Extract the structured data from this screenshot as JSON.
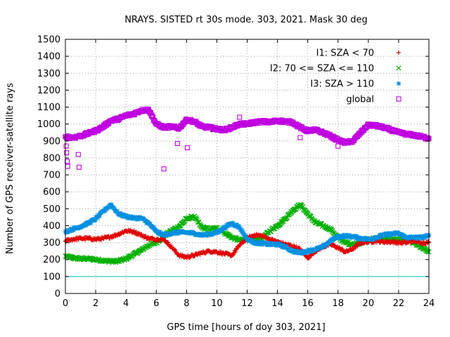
{
  "chart_data": {
    "type": "scatter",
    "title": "NRAYS. SISTED rt 30s mode. 303, 2021. Mask 30 deg",
    "xlabel": "GPS time [hours of doy 303, 2021]",
    "ylabel": "Number of GPS receiver-satellite rays",
    "xlim": [
      0,
      24
    ],
    "ylim": [
      0,
      1500
    ],
    "xticks": [
      "0",
      "2",
      "4",
      "6",
      "8",
      "10",
      "12",
      "14",
      "16",
      "18",
      "20",
      "22",
      "24"
    ],
    "yticks": [
      "0",
      "100",
      "200",
      "300",
      "400",
      "500",
      "600",
      "700",
      "800",
      "900",
      "1000",
      "1100",
      "1200",
      "1300",
      "1400",
      "1500"
    ],
    "grid": true,
    "legend_position": "top-right",
    "reference_line": {
      "y": 100,
      "color": "#00c8c8"
    },
    "series": [
      {
        "name": "I1: SZA < 70",
        "color": "#e00000",
        "marker": "plus",
        "x": [
          0,
          0.5,
          1,
          1.5,
          2,
          2.5,
          3,
          3.5,
          4,
          4.5,
          5,
          5.5,
          6,
          6.5,
          7,
          7.5,
          8,
          8.5,
          9,
          9.5,
          10,
          10.5,
          11,
          11.5,
          12,
          12.5,
          13,
          13.5,
          14,
          14.5,
          15,
          15.5,
          16,
          16.5,
          17,
          17.5,
          18,
          18.5,
          19,
          19.5,
          20,
          20.5,
          21,
          21.5,
          22,
          22.5,
          23,
          23.5,
          24
        ],
        "values": [
          310,
          320,
          325,
          325,
          320,
          325,
          335,
          350,
          370,
          365,
          345,
          325,
          320,
          320,
          275,
          225,
          215,
          225,
          240,
          250,
          245,
          235,
          225,
          285,
          325,
          345,
          340,
          320,
          305,
          290,
          280,
          260,
          210,
          250,
          275,
          290,
          270,
          245,
          265,
          300,
          305,
          310,
          305,
          305,
          300,
          300,
          310,
          300,
          300
        ]
      },
      {
        "name": "I2: 70 <= SZA <= 110",
        "color": "#00b000",
        "marker": "cross",
        "x": [
          0,
          0.5,
          1,
          1.5,
          2,
          2.5,
          3,
          3.5,
          4,
          4.5,
          5,
          5.5,
          6,
          6.5,
          7,
          7.5,
          8,
          8.5,
          9,
          9.5,
          10,
          10.5,
          11,
          11.5,
          12,
          12.5,
          13,
          13.5,
          14,
          14.5,
          15,
          15.5,
          16,
          16.5,
          17,
          17.5,
          18,
          18.5,
          19,
          19.5,
          20,
          20.5,
          21,
          21.5,
          22,
          22.5,
          23,
          23.5,
          24
        ],
        "values": [
          220,
          210,
          205,
          205,
          200,
          195,
          190,
          190,
          205,
          230,
          255,
          285,
          300,
          340,
          370,
          395,
          440,
          455,
          390,
          380,
          385,
          360,
          330,
          315,
          320,
          310,
          325,
          370,
          400,
          440,
          490,
          525,
          470,
          420,
          400,
          380,
          330,
          300,
          290,
          300,
          320,
          325,
          330,
          320,
          320,
          320,
          300,
          270,
          245
        ]
      },
      {
        "name": "I3: SZA > 110",
        "color": "#0090e0",
        "marker": "star",
        "x": [
          0,
          0.5,
          1,
          1.5,
          2,
          2.5,
          3,
          3.5,
          4,
          4.5,
          5,
          5.5,
          6,
          6.5,
          7,
          7.5,
          8,
          8.5,
          9,
          9.5,
          10,
          10.5,
          11,
          11.5,
          12,
          12.5,
          13,
          13.5,
          14,
          14.5,
          15,
          15.5,
          16,
          16.5,
          17,
          17.5,
          18,
          18.5,
          19,
          19.5,
          20,
          20.5,
          21,
          21.5,
          22,
          22.5,
          23,
          23.5,
          24
        ],
        "values": [
          365,
          380,
          395,
          415,
          440,
          485,
          525,
          470,
          455,
          445,
          445,
          415,
          365,
          345,
          355,
          360,
          360,
          355,
          345,
          350,
          360,
          390,
          415,
          390,
          320,
          300,
          295,
          290,
          290,
          275,
          250,
          240,
          250,
          260,
          275,
          310,
          335,
          340,
          335,
          325,
          320,
          330,
          345,
          350,
          355,
          330,
          330,
          330,
          340
        ]
      },
      {
        "name": "global",
        "color": "#c000e0",
        "marker": "square",
        "x": [
          0,
          0.5,
          1,
          1.5,
          2,
          2.5,
          3,
          3.5,
          4,
          4.5,
          5,
          5.5,
          6,
          6.5,
          7,
          7.5,
          8,
          8.5,
          9,
          9.5,
          10,
          10.5,
          11,
          11.5,
          12,
          12.5,
          13,
          13.5,
          14,
          14.5,
          15,
          15.5,
          16,
          16.5,
          17,
          17.5,
          18,
          18.5,
          19,
          19.5,
          20,
          20.5,
          21,
          21.5,
          22,
          22.5,
          23,
          23.5,
          24
        ],
        "values": [
          925,
          920,
          930,
          945,
          960,
          985,
          1020,
          1030,
          1050,
          1060,
          1080,
          1085,
          1000,
          980,
          985,
          975,
          1025,
          1015,
          985,
          980,
          970,
          965,
          980,
          1000,
          1000,
          1010,
          1015,
          1010,
          1020,
          1015,
          1010,
          980,
          960,
          965,
          950,
          930,
          905,
          890,
          900,
          950,
          995,
          990,
          980,
          965,
          950,
          940,
          935,
          925,
          915
        ]
      }
    ],
    "global_outliers": {
      "x": [
        0.05,
        0.08,
        0.12,
        0.15,
        0.85,
        0.9,
        6.5,
        7.4,
        8.05,
        11.5,
        12.0,
        15.5,
        18.0
      ],
      "values": [
        870,
        830,
        780,
        750,
        820,
        745,
        735,
        885,
        860,
        1040,
        1000,
        920,
        870
      ]
    }
  }
}
